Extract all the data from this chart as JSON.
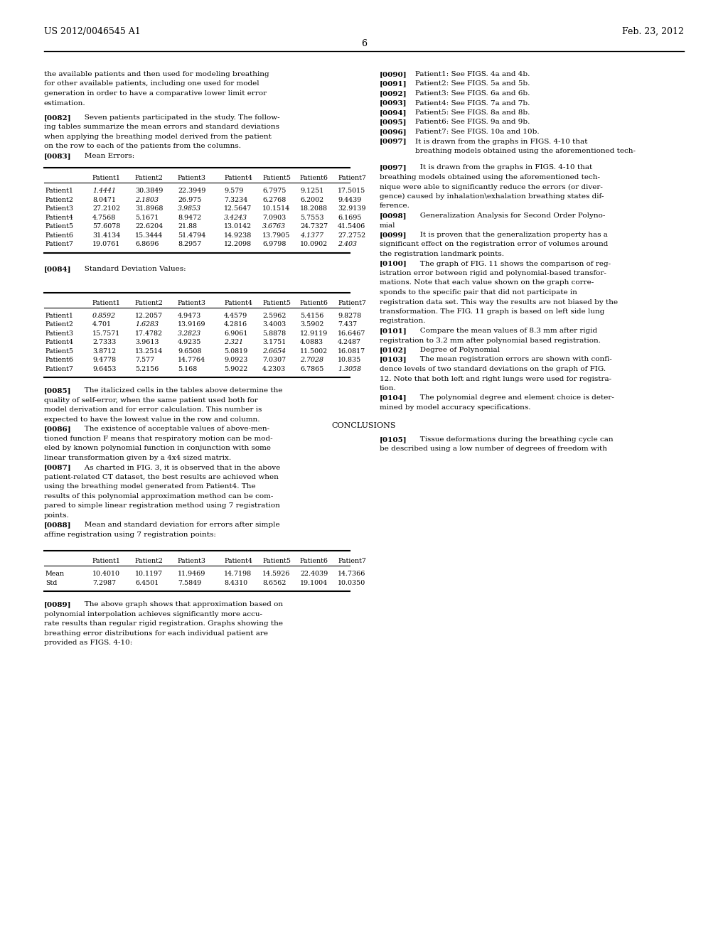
{
  "bg_color": "#ffffff",
  "header_left": "US 2012/0046545 A1",
  "header_right": "Feb. 23, 2012",
  "page_number": "6",
  "table1_headers": [
    "",
    "Patient1",
    "Patient2",
    "Patient3",
    "Patient4",
    "Patient5",
    "Patient6",
    "Patient7"
  ],
  "table1_rows": [
    [
      "Patient1",
      "1.4441",
      "30.3849",
      "22.3949",
      "9.579",
      "6.7975",
      "9.1251",
      "17.5015"
    ],
    [
      "Patient2",
      "8.0471",
      "2.1803",
      "26.975",
      "7.3234",
      "6.2768",
      "6.2002",
      "9.4439"
    ],
    [
      "Patient3",
      "27.2102",
      "31.8968",
      "3.9853",
      "12.5647",
      "10.1514",
      "18.2088",
      "32.9139"
    ],
    [
      "Patient4",
      "4.7568",
      "5.1671",
      "8.9472",
      "3.4243",
      "7.0903",
      "5.7553",
      "6.1695"
    ],
    [
      "Patient5",
      "57.6078",
      "22.6204",
      "21.88",
      "13.0142",
      "3.6763",
      "24.7327",
      "41.5406"
    ],
    [
      "Patient6",
      "31.4134",
      "15.3444",
      "51.4794",
      "14.9238",
      "13.7905",
      "4.1377",
      "27.2752"
    ],
    [
      "Patient7",
      "19.0761",
      "6.8696",
      "8.2957",
      "12.2098",
      "6.9798",
      "10.0902",
      "2.403"
    ]
  ],
  "table1_italic_cells": [
    [
      0,
      1
    ],
    [
      1,
      2
    ],
    [
      2,
      3
    ],
    [
      3,
      4
    ],
    [
      4,
      5
    ],
    [
      5,
      6
    ],
    [
      6,
      7
    ]
  ],
  "table2_headers": [
    "",
    "Patient1",
    "Patient2",
    "Patient3",
    "Patient4",
    "Patient5",
    "Patient6",
    "Patient7"
  ],
  "table2_rows": [
    [
      "Patient1",
      "0.8592",
      "12.2057",
      "4.9473",
      "4.4579",
      "2.5962",
      "5.4156",
      "9.8278"
    ],
    [
      "Patient2",
      "4.701",
      "1.6283",
      "13.9169",
      "4.2816",
      "3.4003",
      "3.5902",
      "7.437"
    ],
    [
      "Patient3",
      "15.7571",
      "17.4782",
      "3.2823",
      "6.9061",
      "5.8878",
      "12.9119",
      "16.6467"
    ],
    [
      "Patient4",
      "2.7333",
      "3.9613",
      "4.9235",
      "2.321",
      "3.1751",
      "4.0883",
      "4.2487"
    ],
    [
      "Patient5",
      "3.8712",
      "13.2514",
      "9.6508",
      "5.0819",
      "2.6654",
      "11.5002",
      "16.0817"
    ],
    [
      "Patient6",
      "9.4778",
      "7.577",
      "14.7764",
      "9.0923",
      "7.0307",
      "2.7028",
      "10.835"
    ],
    [
      "Patient7",
      "9.6453",
      "5.2156",
      "5.168",
      "5.9022",
      "4.2303",
      "6.7865",
      "1.3058"
    ]
  ],
  "table2_italic_cells": [
    [
      0,
      1
    ],
    [
      1,
      2
    ],
    [
      2,
      3
    ],
    [
      3,
      4
    ],
    [
      4,
      5
    ],
    [
      5,
      6
    ],
    [
      6,
      7
    ]
  ],
  "table3_headers": [
    "",
    "Patient1",
    "Patient2",
    "Patient3",
    "Patient4",
    "Patient5",
    "Patient6",
    "Patient7"
  ],
  "table3_rows": [
    [
      "Mean",
      "10.4010",
      "10.1197",
      "11.9469",
      "14.7198",
      "14.5926",
      "22.4039",
      "14.7366"
    ],
    [
      "Std",
      "7.2987",
      "6.4501",
      "7.5849",
      "8.4310",
      "8.6562",
      "19.1004",
      "10.0350"
    ]
  ]
}
